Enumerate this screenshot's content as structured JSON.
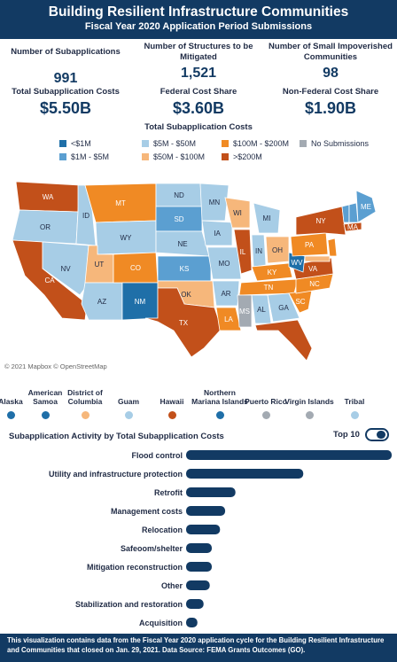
{
  "header": {
    "title": "Building Resilient Infrastructure Communities",
    "subtitle": "Fiscal Year 2020 Application Period Submissions"
  },
  "kpis": {
    "num_subapps_label": "Number of Subapplications",
    "num_subapps_value": "991",
    "structures_label": "Number of Structures to be Mitigated",
    "structures_value": "1,521",
    "small_comm_label": "Number of Small Impoverished Communities",
    "small_comm_value": "98",
    "total_cost_label": "Total Subapplication Costs",
    "total_cost_value": "$5.50B",
    "federal_label": "Federal Cost Share",
    "federal_value": "$3.60B",
    "nonfederal_label": "Non-Federal Cost Share",
    "nonfederal_value": "$1.90B"
  },
  "legend": {
    "title": "Total Subapplication Costs",
    "items": [
      {
        "label": "<$1M",
        "color": "#1f6fa8"
      },
      {
        "label": "$1M - $5M",
        "color": "#5b9fd1"
      },
      {
        "label": "$5M - $50M",
        "color": "#a7cde6"
      },
      {
        "label": "$50M - $100M",
        "color": "#f6b77b"
      },
      {
        "label": "$100M - $200M",
        "color": "#f08a24"
      },
      {
        "label": ">$200M",
        "color": "#c2501a"
      },
      {
        "label": "No Submissions",
        "color": "#a3aab2"
      }
    ]
  },
  "map": {
    "credit": "© 2021 Mapbox © OpenStreetMap",
    "states": [
      {
        "abbr": "WA",
        "color": "#c2501a"
      },
      {
        "abbr": "OR",
        "color": "#a7cde6"
      },
      {
        "abbr": "CA",
        "color": "#c2501a"
      },
      {
        "abbr": "ID",
        "color": "#a7cde6"
      },
      {
        "abbr": "NV",
        "color": "#a7cde6"
      },
      {
        "abbr": "MT",
        "color": "#f08a24"
      },
      {
        "abbr": "WY",
        "color": "#a7cde6"
      },
      {
        "abbr": "UT",
        "color": "#f6b77b"
      },
      {
        "abbr": "AZ",
        "color": "#a7cde6"
      },
      {
        "abbr": "CO",
        "color": "#f08a24"
      },
      {
        "abbr": "NM",
        "color": "#1f6fa8"
      },
      {
        "abbr": "ND",
        "color": "#a7cde6"
      },
      {
        "abbr": "SD",
        "color": "#5b9fd1"
      },
      {
        "abbr": "NE",
        "color": "#a7cde6"
      },
      {
        "abbr": "KS",
        "color": "#5b9fd1"
      },
      {
        "abbr": "OK",
        "color": "#f6b77b"
      },
      {
        "abbr": "TX",
        "color": "#c2501a"
      },
      {
        "abbr": "MN",
        "color": "#a7cde6"
      },
      {
        "abbr": "IA",
        "color": "#a7cde6"
      },
      {
        "abbr": "MO",
        "color": "#a7cde6"
      },
      {
        "abbr": "AR",
        "color": "#a7cde6"
      },
      {
        "abbr": "LA",
        "color": "#f08a24"
      },
      {
        "abbr": "WI",
        "color": "#f6b77b"
      },
      {
        "abbr": "IL",
        "color": "#c2501a"
      },
      {
        "abbr": "MI",
        "color": "#a7cde6"
      },
      {
        "abbr": "IN",
        "color": "#a7cde6"
      },
      {
        "abbr": "OH",
        "color": "#f6b77b"
      },
      {
        "abbr": "KY",
        "color": "#f08a24"
      },
      {
        "abbr": "TN",
        "color": "#f08a24"
      },
      {
        "abbr": "MS",
        "color": "#a3aab2"
      },
      {
        "abbr": "AL",
        "color": "#a7cde6"
      },
      {
        "abbr": "GA",
        "color": "#a7cde6"
      },
      {
        "abbr": "FL",
        "color": "#c2501a"
      },
      {
        "abbr": "SC",
        "color": "#f08a24"
      },
      {
        "abbr": "NC",
        "color": "#f08a24"
      },
      {
        "abbr": "VA",
        "color": "#c2501a"
      },
      {
        "abbr": "WV",
        "color": "#1f6fa8"
      },
      {
        "abbr": "PA",
        "color": "#f08a24"
      },
      {
        "abbr": "NY",
        "color": "#c2501a"
      },
      {
        "abbr": "VT",
        "color": "#5b9fd1"
      },
      {
        "abbr": "NH",
        "color": "#5b9fd1"
      },
      {
        "abbr": "ME",
        "color": "#5b9fd1"
      },
      {
        "abbr": "MA",
        "color": "#c2501a"
      },
      {
        "abbr": "NJ",
        "color": "#f08a24"
      },
      {
        "abbr": "MD",
        "color": "#f6b77b"
      }
    ]
  },
  "territories": [
    {
      "name": "Alaska",
      "color": "#1f6fa8"
    },
    {
      "name": "American Samoa",
      "color": "#1f6fa8"
    },
    {
      "name": "District of Columbia",
      "color": "#f6b77b"
    },
    {
      "name": "Guam",
      "color": "#a7cde6"
    },
    {
      "name": "Hawaii",
      "color": "#c2501a"
    },
    {
      "name": "Northern Mariana Islands",
      "color": "#1f6fa8"
    },
    {
      "name": "Puerto Rico",
      "color": "#a3aab2"
    },
    {
      "name": "Virgin Islands",
      "color": "#a3aab2"
    },
    {
      "name": "Tribal",
      "color": "#a7cde6"
    }
  ],
  "activity": {
    "title": "Subapplication Activity by Total Subapplication Costs",
    "toggle_label": "Top 10"
  },
  "chart_data": {
    "type": "bar",
    "orientation": "horizontal",
    "categories": [
      "Flood control",
      "Utility and infrastructure protection",
      "Retrofit",
      "Management costs",
      "Relocation",
      "Safeoom/shelter",
      "Mitigation reconstruction",
      "Other",
      "Stabilization and restoration",
      "Acquisition"
    ],
    "values": [
      100,
      57,
      24,
      19,
      16.5,
      12.5,
      12.5,
      11.5,
      8.5,
      5.5
    ],
    "bar_color": "#123a63"
  },
  "footer": {
    "text": "This visualization contains data from the Fiscal Year 2020 application cycle for the Building Resilient Infrastructure and Communities that closed on Jan. 29, 2021. Data Source: FEMA Grants Outcomes (GO)."
  }
}
